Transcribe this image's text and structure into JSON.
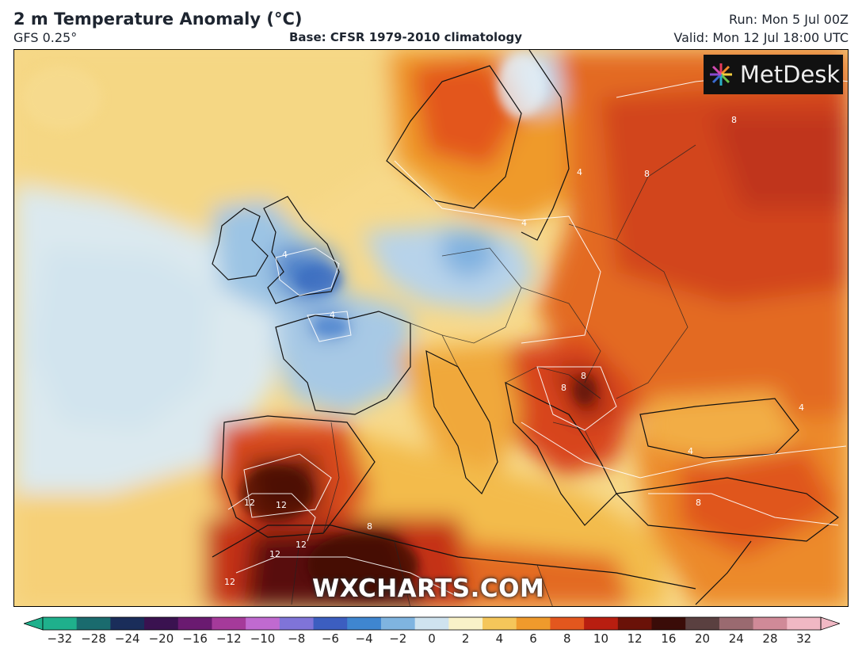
{
  "header": {
    "title": "2 m Temperature Anomaly (°C)",
    "model": "GFS 0.25°",
    "base": "Base: CFSR 1979-2010 climatology",
    "run": "Run: Mon 5 Jul 00Z",
    "valid": "Valid: Mon 12 Jul 18:00 UTC"
  },
  "logo": {
    "text": "MetDesk",
    "icon": "metdesk-logo-icon"
  },
  "watermark": "WXCHARTS.COM",
  "map": {
    "region": "Europe, North Africa and North Atlantic",
    "contour_labels": [
      "4",
      "4",
      "4",
      "4",
      "4",
      "4",
      "8",
      "8",
      "8",
      "8",
      "8",
      "8",
      "12",
      "12",
      "12",
      "12",
      "12"
    ]
  },
  "colorbar": {
    "ticks": [
      "−32",
      "−28",
      "−24",
      "−20",
      "−16",
      "−12",
      "−10",
      "−8",
      "−6",
      "−4",
      "−2",
      "0",
      "2",
      "4",
      "6",
      "8",
      "10",
      "12",
      "16",
      "20",
      "24",
      "28",
      "32"
    ],
    "colors": [
      "#1fb08c",
      "#1a6b6e",
      "#1a2d5a",
      "#3a1250",
      "#6a1a70",
      "#a53a9a",
      "#c06ad0",
      "#7f74d8",
      "#3c5ec0",
      "#3f86d0",
      "#7fb4e0",
      "#cfe3ef",
      "#f9f2c8",
      "#f5c65a",
      "#ef9a2c",
      "#e3571e",
      "#b81e10",
      "#6a1208",
      "#3a0c08",
      "#5a4040",
      "#9a6a70",
      "#d08a98",
      "#f0b8c4"
    ]
  }
}
